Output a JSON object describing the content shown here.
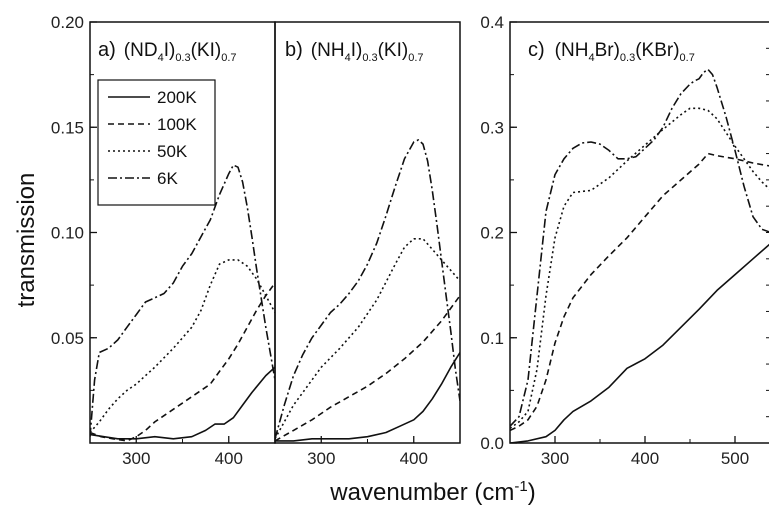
{
  "chart_data": [
    {
      "type": "line",
      "panel_letter": "a)",
      "title_parts": {
        "a": "(ND",
        "a_sub": "4",
        "b": "I)",
        "b_sub": "0.3",
        "c": "(KI)",
        "c_sub": "0.7"
      },
      "xlabel": "wavenumber (cm",
      "xlabel_sup": "-1",
      "xlabel_close": ")",
      "ylabel": "transmission",
      "xlim": [
        250,
        450
      ],
      "ylim": [
        0,
        0.2
      ],
      "xticks": [
        300,
        400
      ],
      "xtick_labels": [
        "300",
        "400"
      ],
      "yticks": [
        0.05,
        0.1,
        0.15,
        0.2
      ],
      "ytick_labels": [
        "0.05",
        "0.10",
        "0.15",
        "0.20"
      ],
      "legend": {
        "entries": [
          "200K",
          "100K",
          "50K",
          "6K"
        ],
        "placement": "upper-left"
      },
      "series": [
        {
          "name": "200K",
          "style": "solid",
          "x": [
            250,
            265,
            280,
            300,
            320,
            340,
            360,
            375,
            385,
            395,
            405,
            415,
            425,
            440,
            450
          ],
          "y": [
            0.004,
            0.003,
            0.002,
            0.002,
            0.003,
            0.002,
            0.003,
            0.006,
            0.009,
            0.009,
            0.012,
            0.018,
            0.024,
            0.032,
            0.036
          ]
        },
        {
          "name": "100K",
          "style": "dashed",
          "x": [
            250,
            262,
            275,
            290,
            300,
            310,
            320,
            340,
            360,
            380,
            390,
            400,
            410,
            420,
            430,
            440,
            450
          ],
          "y": [
            0.005,
            0.003,
            0.002,
            0.001,
            0.003,
            0.006,
            0.01,
            0.016,
            0.022,
            0.028,
            0.034,
            0.04,
            0.047,
            0.055,
            0.063,
            0.07,
            0.076
          ]
        },
        {
          "name": "50K",
          "style": "dotted",
          "x": [
            250,
            260,
            270,
            280,
            290,
            300,
            310,
            320,
            340,
            360,
            370,
            380,
            390,
            400,
            410,
            420,
            430,
            440,
            450
          ],
          "y": [
            0.005,
            0.01,
            0.016,
            0.021,
            0.025,
            0.028,
            0.032,
            0.036,
            0.045,
            0.055,
            0.063,
            0.075,
            0.085,
            0.087,
            0.087,
            0.084,
            0.078,
            0.07,
            0.062
          ]
        },
        {
          "name": "6K",
          "style": "dashdot",
          "x": [
            250,
            255,
            260,
            270,
            280,
            290,
            300,
            310,
            320,
            330,
            340,
            350,
            360,
            370,
            380,
            390,
            400,
            405,
            410,
            415,
            420,
            425,
            430,
            440,
            450
          ],
          "y": [
            0.003,
            0.03,
            0.043,
            0.045,
            0.049,
            0.055,
            0.061,
            0.067,
            0.069,
            0.071,
            0.076,
            0.084,
            0.09,
            0.098,
            0.106,
            0.118,
            0.128,
            0.132,
            0.131,
            0.124,
            0.112,
            0.098,
            0.083,
            0.055,
            0.03
          ]
        }
      ]
    },
    {
      "type": "line",
      "panel_letter": "b)",
      "title_parts": {
        "a": "(NH",
        "a_sub": "4",
        "b": "I)",
        "b_sub": "0.3",
        "c": "(KI)",
        "c_sub": "0.7"
      },
      "xlim": [
        250,
        450
      ],
      "ylim": [
        0,
        0.2
      ],
      "xticks": [
        300,
        400
      ],
      "xtick_labels": [
        "300",
        "400"
      ],
      "series": [
        {
          "name": "200K",
          "style": "solid",
          "x": [
            250,
            270,
            290,
            310,
            330,
            350,
            370,
            385,
            400,
            410,
            420,
            430,
            440,
            450
          ],
          "y": [
            0.001,
            0.001,
            0.002,
            0.002,
            0.002,
            0.003,
            0.005,
            0.008,
            0.011,
            0.015,
            0.021,
            0.028,
            0.036,
            0.043
          ]
        },
        {
          "name": "100K",
          "style": "dashed",
          "x": [
            250,
            270,
            290,
            310,
            330,
            350,
            370,
            390,
            410,
            430,
            450
          ],
          "y": [
            0.001,
            0.006,
            0.011,
            0.017,
            0.022,
            0.027,
            0.033,
            0.04,
            0.048,
            0.058,
            0.07
          ]
        },
        {
          "name": "50K",
          "style": "dotted",
          "x": [
            250,
            260,
            270,
            280,
            290,
            300,
            320,
            340,
            360,
            380,
            390,
            400,
            410,
            420,
            430,
            440,
            450
          ],
          "y": [
            0.002,
            0.01,
            0.018,
            0.024,
            0.03,
            0.036,
            0.045,
            0.055,
            0.068,
            0.085,
            0.093,
            0.097,
            0.097,
            0.092,
            0.087,
            0.082,
            0.077
          ]
        },
        {
          "name": "6K",
          "style": "dashdot",
          "x": [
            250,
            260,
            270,
            280,
            290,
            300,
            310,
            320,
            330,
            340,
            350,
            360,
            370,
            380,
            390,
            400,
            405,
            410,
            415,
            420,
            425,
            430,
            435,
            440,
            445,
            450
          ],
          "y": [
            0.002,
            0.018,
            0.032,
            0.042,
            0.05,
            0.056,
            0.062,
            0.066,
            0.071,
            0.077,
            0.085,
            0.095,
            0.108,
            0.122,
            0.135,
            0.143,
            0.144,
            0.142,
            0.134,
            0.12,
            0.104,
            0.087,
            0.07,
            0.053,
            0.035,
            0.02
          ]
        }
      ]
    },
    {
      "type": "line",
      "panel_letter": "c)",
      "title_parts": {
        "a": "(NH",
        "a_sub": "4",
        "b": "Br)",
        "b_sub": "0.3",
        "c": "(KBr)",
        "c_sub": "0.7"
      },
      "xlim": [
        250,
        550
      ],
      "ylim": [
        0,
        0.4
      ],
      "xticks": [
        300,
        400,
        500
      ],
      "xtick_labels": [
        "300",
        "400",
        "500"
      ],
      "yticks": [
        0.0,
        0.1,
        0.2,
        0.3,
        0.4
      ],
      "ytick_labels": [
        "0.0",
        "0.1",
        "0.2",
        "0.3",
        "0.4"
      ],
      "series": [
        {
          "name": "200K",
          "style": "solid",
          "x": [
            250,
            270,
            290,
            300,
            310,
            320,
            340,
            360,
            380,
            400,
            420,
            440,
            460,
            480,
            500,
            520,
            540,
            550
          ],
          "y": [
            0.0,
            0.002,
            0.006,
            0.012,
            0.022,
            0.03,
            0.04,
            0.053,
            0.071,
            0.08,
            0.093,
            0.11,
            0.127,
            0.145,
            0.16,
            0.175,
            0.19,
            0.2
          ]
        },
        {
          "name": "100K",
          "style": "dashed",
          "x": [
            250,
            260,
            270,
            280,
            290,
            300,
            310,
            320,
            340,
            360,
            380,
            400,
            420,
            440,
            460,
            470,
            480,
            500,
            520,
            540,
            550
          ],
          "y": [
            0.012,
            0.016,
            0.022,
            0.035,
            0.06,
            0.095,
            0.12,
            0.138,
            0.16,
            0.178,
            0.195,
            0.215,
            0.235,
            0.25,
            0.265,
            0.275,
            0.273,
            0.27,
            0.266,
            0.263,
            0.262
          ]
        },
        {
          "name": "50K",
          "style": "dotted",
          "x": [
            250,
            260,
            270,
            280,
            290,
            300,
            310,
            320,
            340,
            360,
            380,
            400,
            420,
            440,
            450,
            460,
            470,
            480,
            490,
            500,
            510,
            520,
            530,
            540,
            550
          ],
          "y": [
            0.014,
            0.02,
            0.03,
            0.07,
            0.14,
            0.195,
            0.225,
            0.238,
            0.24,
            0.252,
            0.268,
            0.283,
            0.298,
            0.312,
            0.318,
            0.318,
            0.316,
            0.308,
            0.295,
            0.282,
            0.27,
            0.258,
            0.248,
            0.24,
            0.235
          ]
        },
        {
          "name": "6K",
          "style": "dashdot",
          "x": [
            250,
            260,
            270,
            280,
            290,
            300,
            310,
            320,
            330,
            340,
            350,
            360,
            370,
            380,
            390,
            400,
            410,
            420,
            430,
            440,
            450,
            455,
            460,
            465,
            470,
            475,
            480,
            490,
            500,
            510,
            520,
            530,
            540,
            550
          ],
          "y": [
            0.016,
            0.025,
            0.06,
            0.14,
            0.22,
            0.255,
            0.27,
            0.28,
            0.285,
            0.286,
            0.284,
            0.278,
            0.27,
            0.27,
            0.272,
            0.28,
            0.288,
            0.3,
            0.318,
            0.332,
            0.341,
            0.344,
            0.346,
            0.352,
            0.355,
            0.35,
            0.338,
            0.31,
            0.278,
            0.244,
            0.215,
            0.203,
            0.2,
            0.198
          ]
        }
      ]
    }
  ]
}
